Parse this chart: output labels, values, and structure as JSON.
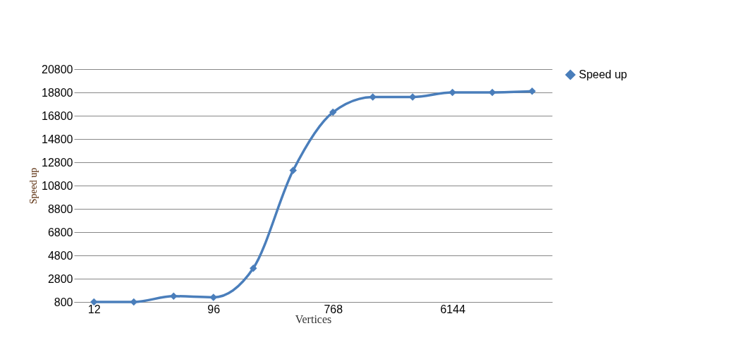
{
  "chart_data": {
    "type": "line",
    "xlabel": "Vertices",
    "ylabel": "Speed up",
    "categories": [
      "12",
      null,
      null,
      "96",
      null,
      null,
      "768",
      null,
      null,
      "6144",
      null,
      null
    ],
    "series": [
      {
        "name": "Speed up",
        "color": "#4a7ebb",
        "values": [
          800,
          800,
          1300,
          1200,
          3700,
          12100,
          17100,
          18400,
          18400,
          18800,
          18800,
          18900
        ]
      }
    ],
    "ylim": [
      800,
      20800
    ],
    "yticks": [
      800,
      2800,
      4800,
      6800,
      8800,
      10800,
      12800,
      14800,
      16800,
      18800,
      20800
    ],
    "grid": "y",
    "legend": "right",
    "marker": "diamond",
    "line_style": "solid"
  }
}
